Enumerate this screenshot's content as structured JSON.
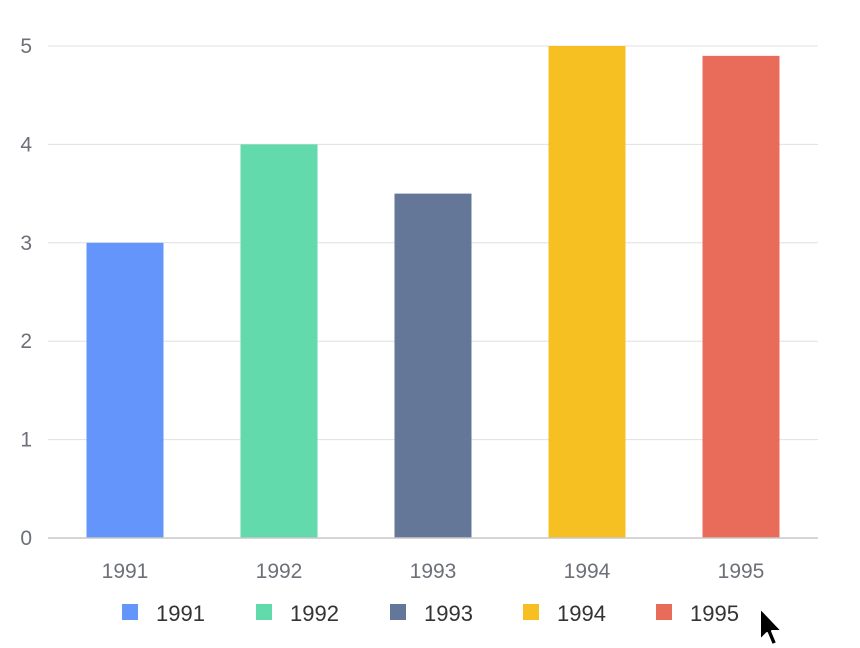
{
  "chart_data": {
    "type": "bar",
    "title": "",
    "xlabel": "",
    "ylabel": "",
    "categories": [
      "1991",
      "1992",
      "1993",
      "1994",
      "1995"
    ],
    "values": [
      3,
      4,
      3.5,
      5,
      4.9
    ],
    "colors": [
      "#6395fa",
      "#62daab",
      "#657798",
      "#f6c022",
      "#e96c5b"
    ],
    "ylim": [
      0,
      5
    ],
    "yticks": [
      "0",
      "1",
      "2",
      "3",
      "4",
      "5"
    ],
    "grid": true,
    "legend": {
      "position": "bottom",
      "entries": [
        "1991",
        "1992",
        "1993",
        "1994",
        "1995"
      ]
    }
  },
  "cursor": {
    "icon": "mouse-pointer-icon"
  }
}
